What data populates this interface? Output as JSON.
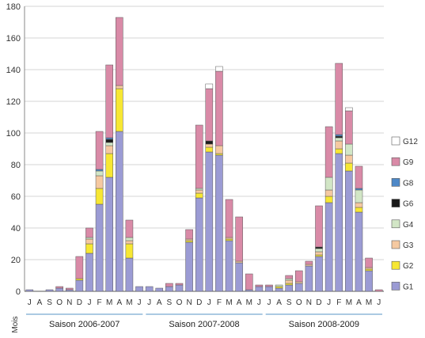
{
  "chart_data": {
    "type": "bar",
    "stacked": true,
    "title": "",
    "xlabel": "",
    "ylabel": "",
    "ylim": [
      0,
      180
    ],
    "yticks": [
      0,
      20,
      40,
      60,
      80,
      100,
      120,
      140,
      160,
      180
    ],
    "grid": true,
    "legend_position": "right",
    "x_axis_note": "Mois",
    "categories": [
      "J",
      "A",
      "S",
      "O",
      "N",
      "D",
      "J",
      "F",
      "M",
      "A",
      "M",
      "J",
      "J",
      "A",
      "S",
      "O",
      "N",
      "D",
      "J",
      "F",
      "M",
      "A",
      "M",
      "J",
      "J",
      "A",
      "S",
      "O",
      "N",
      "D",
      "J",
      "F",
      "M",
      "A",
      "M",
      "J"
    ],
    "seasons": [
      {
        "label": "Saison 2006-2007",
        "start": 0,
        "end": 11
      },
      {
        "label": "Saison 2007-2008",
        "start": 12,
        "end": 23
      },
      {
        "label": "Saison 2008-2009",
        "start": 24,
        "end": 35
      }
    ],
    "series": [
      {
        "name": "G1",
        "color": "#9b9bd4",
        "values": [
          1,
          0,
          1,
          2,
          1,
          7,
          24,
          55,
          72,
          101,
          21,
          3,
          3,
          2,
          3,
          4,
          31,
          59,
          88,
          86,
          32,
          18,
          1,
          3,
          3,
          2,
          4,
          5,
          16,
          22,
          56,
          87,
          76,
          50,
          13,
          0
        ]
      },
      {
        "name": "G2",
        "color": "#f7e733",
        "values": [
          0,
          0,
          0,
          0,
          0,
          1,
          6,
          10,
          15,
          27,
          9,
          0,
          0,
          0,
          0,
          0,
          1,
          3,
          3,
          1,
          1,
          0,
          0,
          0,
          0,
          1,
          1,
          0,
          0,
          1,
          4,
          3,
          5,
          3,
          1,
          0
        ]
      },
      {
        "name": "G3",
        "color": "#f5c9a1",
        "values": [
          0,
          0,
          0,
          0,
          0,
          0,
          3,
          8,
          5,
          2,
          2,
          0,
          0,
          0,
          0,
          0,
          1,
          2,
          2,
          5,
          1,
          1,
          0,
          0,
          0,
          0,
          2,
          1,
          1,
          2,
          4,
          5,
          5,
          3,
          1,
          0
        ]
      },
      {
        "name": "G4",
        "color": "#d2e6c6",
        "values": [
          0,
          0,
          0,
          0,
          0,
          0,
          1,
          3,
          2,
          0,
          2,
          0,
          0,
          0,
          0,
          0,
          0,
          1,
          0,
          0,
          0,
          0,
          0,
          0,
          0,
          1,
          1,
          0,
          0,
          2,
          8,
          2,
          7,
          8,
          0,
          0
        ]
      },
      {
        "name": "G6",
        "color": "#1a1a1a",
        "values": [
          0,
          0,
          0,
          0,
          0,
          0,
          0,
          0,
          2,
          0,
          0,
          0,
          0,
          0,
          0,
          0,
          0,
          0,
          2,
          0,
          0,
          0,
          0,
          0,
          0,
          0,
          0,
          0,
          0,
          1,
          0,
          1,
          0,
          0,
          0,
          0
        ]
      },
      {
        "name": "G8",
        "color": "#4d88c7",
        "values": [
          0,
          0,
          0,
          0,
          0,
          0,
          0,
          1,
          1,
          0,
          0,
          0,
          0,
          0,
          0,
          0,
          0,
          0,
          0,
          0,
          0,
          0,
          0,
          0,
          0,
          0,
          0,
          0,
          0,
          0,
          0,
          1,
          0,
          1,
          0,
          0
        ]
      },
      {
        "name": "G9",
        "color": "#d98aa7",
        "values": [
          0,
          0,
          0,
          1,
          1,
          14,
          6,
          24,
          46,
          43,
          11,
          0,
          0,
          0,
          2,
          1,
          6,
          40,
          33,
          47,
          24,
          28,
          10,
          1,
          1,
          0,
          2,
          7,
          2,
          26,
          32,
          45,
          21,
          14,
          6,
          1
        ]
      },
      {
        "name": "G12",
        "color": "#ffffff",
        "values": [
          0,
          0,
          0,
          0,
          0,
          0,
          0,
          0,
          0,
          0,
          0,
          0,
          0,
          0,
          0,
          0,
          0,
          0,
          3,
          3,
          0,
          0,
          0,
          0,
          0,
          0,
          0,
          0,
          0,
          0,
          0,
          0,
          2,
          0,
          0,
          0
        ]
      }
    ]
  }
}
